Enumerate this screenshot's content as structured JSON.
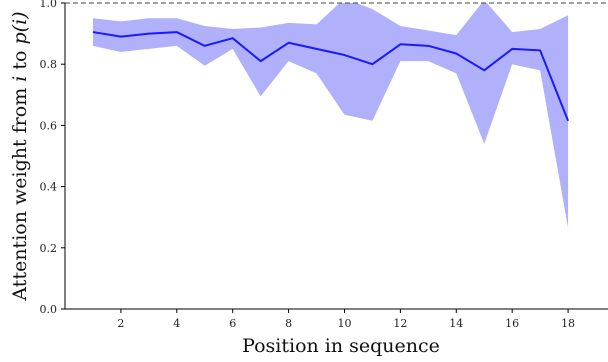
{
  "chart_data": {
    "type": "line",
    "xlabel": "Position in sequence",
    "ylabel": "Attention weight from i to p(i)",
    "xlim": [
      0,
      19.5
    ],
    "ylim": [
      0.0,
      1.0
    ],
    "x_ticks": [
      2,
      4,
      6,
      8,
      10,
      12,
      14,
      16,
      18
    ],
    "y_ticks": [
      0.0,
      0.2,
      0.4,
      0.6,
      0.8,
      1.0
    ],
    "x_tick_labels": [
      "2",
      "4",
      "6",
      "8",
      "10",
      "12",
      "14",
      "16",
      "18"
    ],
    "y_tick_labels": [
      "0.0",
      "0.2",
      "0.4",
      "0.6",
      "0.8",
      "1.0"
    ],
    "grid": false,
    "reference_line": {
      "y": 1.0,
      "style": "dashed"
    },
    "series": [
      {
        "x": [
          1,
          2,
          3,
          4,
          5,
          6,
          7,
          8,
          9,
          10,
          11,
          12,
          13,
          14,
          15,
          16,
          17,
          18
        ],
        "values": [
          0.905,
          0.89,
          0.9,
          0.905,
          0.86,
          0.885,
          0.81,
          0.87,
          0.85,
          0.83,
          0.8,
          0.865,
          0.86,
          0.835,
          0.78,
          0.85,
          0.845,
          0.615
        ],
        "lower": [
          0.86,
          0.84,
          0.85,
          0.86,
          0.795,
          0.85,
          0.695,
          0.81,
          0.77,
          0.635,
          0.615,
          0.81,
          0.81,
          0.77,
          0.54,
          0.8,
          0.78,
          0.265
        ],
        "upper": [
          0.95,
          0.94,
          0.95,
          0.95,
          0.925,
          0.915,
          0.92,
          0.935,
          0.93,
          1.015,
          0.98,
          0.925,
          0.91,
          0.895,
          1.01,
          0.905,
          0.915,
          0.96
        ],
        "line_color": "#1a1aff",
        "band_color": "#8f8ffa"
      }
    ]
  }
}
